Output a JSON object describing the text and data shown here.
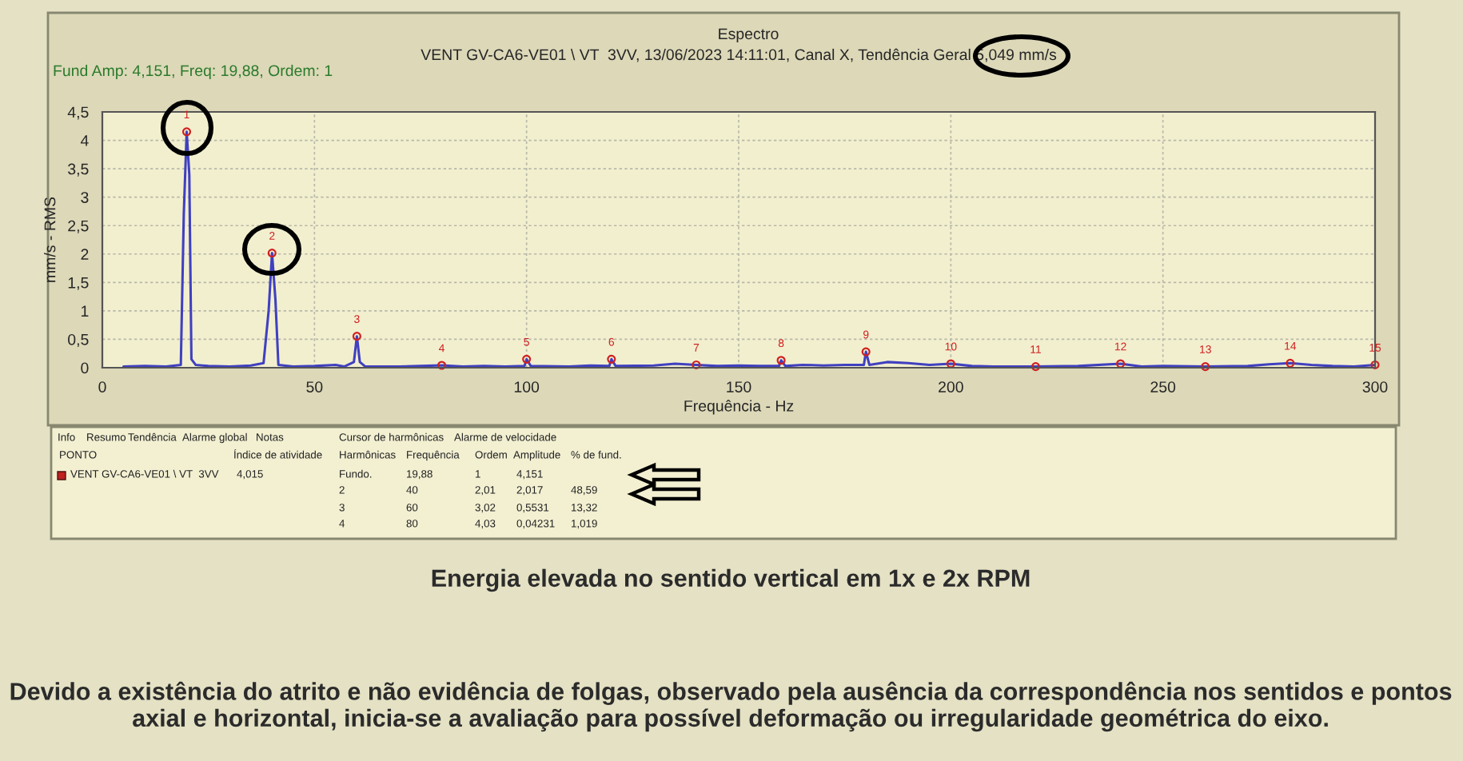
{
  "chart_data": {
    "type": "line",
    "title": "Espectro",
    "subtitle": "VENT GV-CA6-VE01 \\ VT  3VV, 13/06/2023 14:11:01, Canal X, Tendência Geral 5,049 mm/s",
    "xlabel": "Frequência - Hz",
    "ylabel": "mm/s - RMS",
    "xlim": [
      0,
      300
    ],
    "xticks": [
      0,
      50,
      100,
      150,
      200,
      250,
      300
    ],
    "ylim": [
      0,
      4.5
    ],
    "yticks": [
      0,
      {
        "value": 0.5,
        "label": "0,5"
      },
      1,
      {
        "value": 1.5,
        "label": "1,5"
      },
      2,
      {
        "value": 2.5,
        "label": "2,5"
      },
      3,
      {
        "value": 3.5,
        "label": "3,5"
      },
      4,
      {
        "value": 4.5,
        "label": "4,5"
      }
    ],
    "grid": true,
    "series": [
      {
        "color": "#4040c0",
        "x": [
          5,
          10,
          15,
          18.5,
          19.2,
          19.88,
          20.5,
          21,
          22,
          25,
          30,
          35,
          38,
          39.2,
          40,
          40.8,
          41.5,
          45,
          50,
          55,
          57,
          59.3,
          60,
          60.7,
          62,
          70,
          75,
          80,
          85,
          90,
          95,
          99.5,
          100,
          101,
          110,
          115,
          119.5,
          120,
          121,
          130,
          135,
          140,
          145,
          150,
          155,
          159.5,
          160,
          161,
          165,
          170,
          175,
          179.5,
          180,
          180.8,
          185,
          190,
          195,
          200,
          205,
          210,
          220,
          230,
          240,
          245,
          250,
          260,
          270,
          275,
          280,
          285,
          290,
          295,
          300
        ],
        "values": [
          0.02,
          0.03,
          0.02,
          0.05,
          2.7,
          4.151,
          3.4,
          0.15,
          0.05,
          0.03,
          0.02,
          0.04,
          0.08,
          1.0,
          2.017,
          1.2,
          0.05,
          0.02,
          0.03,
          0.05,
          0.02,
          0.1,
          0.5531,
          0.1,
          0.02,
          0.02,
          0.03,
          0.04231,
          0.02,
          0.03,
          0.02,
          0.03,
          0.15,
          0.03,
          0.02,
          0.04,
          0.03,
          0.15,
          0.03,
          0.04,
          0.07,
          0.05,
          0.03,
          0.04,
          0.03,
          0.03,
          0.13,
          0.03,
          0.05,
          0.04,
          0.05,
          0.05,
          0.28,
          0.05,
          0.1,
          0.08,
          0.05,
          0.07,
          0.03,
          0.02,
          0.02,
          0.03,
          0.07,
          0.02,
          0.03,
          0.02,
          0.03,
          0.06,
          0.08,
          0.05,
          0.03,
          0.02,
          0.05
        ]
      }
    ],
    "annotations": [
      "Fund Amp: 4,151, Freq: 19,88, Ordem: 1",
      "Info",
      "Resumo",
      "Tendência",
      "Alarme global",
      "Notas",
      "Cursor de harmônicas",
      "Alarme de velocidade",
      "PONTO",
      "Índice de atividade",
      "Harmônicas",
      "Frequência",
      "Ordem",
      "Amplitude",
      "% de fund.",
      "VENT GV-CA6-VE01 \\ VT  3VV",
      "4,015",
      "Fundo.",
      "19,88",
      "1",
      "4,151",
      "2",
      "40",
      "2,01",
      "2,017",
      "48,59",
      "3",
      "60",
      "3,02",
      "0,5531",
      "13,32",
      "4",
      "80",
      "4,03",
      "0,04231",
      "1,019",
      "Energia elevada no sentido vertical em 1x e 2x RPM",
      "Devido a existência do atrito e não evidência de folgas, observado pela ausência da correspondência nos sentidos e pontos axial e horizontal, inicia-se a avaliação para possível deformação ou irregularidade geométrica do eixo.",
      {
        "text": "1",
        "x": 19.88,
        "y": 4.151
      },
      {
        "text": "2",
        "x": 40,
        "y": 2.017
      },
      {
        "text": "3",
        "x": 60,
        "y": 0.5531
      },
      {
        "text": "4",
        "x": 80,
        "y": 0.04231
      },
      {
        "text": "5",
        "x": 100,
        "y": 0.15
      },
      {
        "text": "6",
        "x": 120,
        "y": 0.15
      },
      {
        "text": "7",
        "x": 140,
        "y": 0.05
      },
      {
        "text": "8",
        "x": 160,
        "y": 0.13
      },
      {
        "text": "9",
        "x": 180,
        "y": 0.28
      },
      {
        "text": "10",
        "x": 200,
        "y": 0.07
      },
      {
        "text": "11",
        "x": 220,
        "y": 0.02
      },
      {
        "text": "12",
        "x": 240,
        "y": 0.07
      },
      {
        "text": "13",
        "x": 260,
        "y": 0.02
      },
      {
        "text": "14",
        "x": 280,
        "y": 0.08
      },
      {
        "text": "15",
        "x": 300,
        "y": 0.05
      }
    ]
  }
}
